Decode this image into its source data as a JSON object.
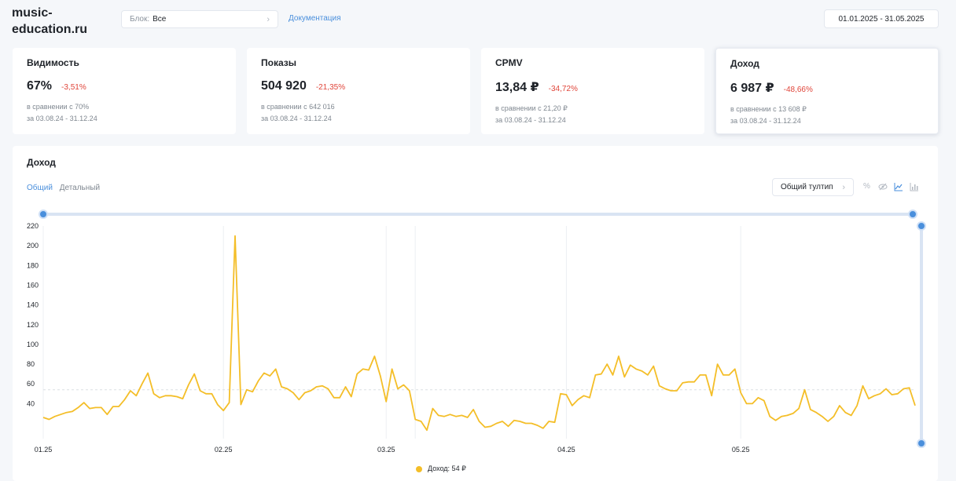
{
  "header": {
    "site_title_line1": "music-",
    "site_title_line2": "education.ru",
    "block_label": "Блок:",
    "block_value": "Все",
    "doc_link": "Документация",
    "date_range": "01.01.2025 - 31.05.2025"
  },
  "kpis": [
    {
      "title": "Видимость",
      "value": "67%",
      "delta": "-3,51%",
      "compare": "в сравнении с 70%",
      "period": "за 03.08.24 - 31.12.24"
    },
    {
      "title": "Показы",
      "value": "504 920",
      "delta": "-21,35%",
      "compare": "в сравнении с 642 016",
      "period": "за 03.08.24 - 31.12.24"
    },
    {
      "title": "CPMV",
      "value": "13,84 ₽",
      "delta": "-34,72%",
      "compare": "в сравнении с 21,20 ₽",
      "period": "за 03.08.24 - 31.12.24"
    },
    {
      "title": "Доход",
      "value": "6 987 ₽",
      "delta": "-48,66%",
      "compare": "в сравнении с 13 608 ₽",
      "period": "за 03.08.24 - 31.12.24"
    }
  ],
  "chart_section": {
    "title": "Доход",
    "tab_general": "Общий",
    "tab_detailed": "Детальный",
    "tooltip_button": "Общий тултип",
    "tools": [
      "percent-icon",
      "hide-icon",
      "line-chart-icon",
      "bar-chart-icon"
    ],
    "legend_label": "Доход: 54 ₽"
  },
  "colors": {
    "accent": "#4a8fdc",
    "series": "#f4be28",
    "negative": "#e0453a"
  },
  "chart_data": {
    "type": "line",
    "title": "Доход",
    "x_ticks": [
      "01.25",
      "02.25",
      "03.25",
      "04.25",
      "05.25"
    ],
    "y_ticks": [
      40,
      60,
      80,
      100,
      120,
      140,
      160,
      180,
      200,
      220
    ],
    "ylim": [
      20,
      220
    ],
    "average": 54,
    "grid": "vertical",
    "legend": "bottom-center",
    "series": [
      {
        "name": "Доход",
        "start_date": "01.01.2025",
        "step_days": 1,
        "values": [
          26,
          24,
          27,
          29,
          31,
          32,
          36,
          41,
          35,
          36,
          36,
          29,
          37,
          37,
          44,
          53,
          48,
          60,
          71,
          50,
          46,
          48,
          48,
          47,
          45,
          59,
          70,
          53,
          50,
          50,
          39,
          33,
          41,
          210,
          39,
          54,
          52,
          63,
          71,
          68,
          75,
          57,
          55,
          51,
          44,
          51,
          53,
          57,
          58,
          55,
          46,
          46,
          57,
          47,
          70,
          75,
          74,
          88,
          68,
          42,
          75,
          55,
          59,
          53,
          24,
          22,
          13,
          35,
          28,
          27,
          29,
          27,
          28,
          26,
          34,
          22,
          16,
          17,
          20,
          22,
          17,
          23,
          22,
          20,
          20,
          18,
          15,
          22,
          21,
          50,
          49,
          38,
          44,
          48,
          46,
          69,
          70,
          80,
          69,
          88,
          67,
          79,
          75,
          73,
          69,
          78,
          58,
          55,
          53,
          53,
          61,
          62,
          62,
          69,
          69,
          48,
          80,
          69,
          69,
          75,
          51,
          40,
          40,
          46,
          43,
          27,
          23,
          27,
          28,
          30,
          35,
          54,
          34,
          31,
          27,
          22,
          27,
          38,
          31,
          28,
          38,
          58,
          45,
          48,
          50,
          55,
          49,
          50,
          55,
          56,
          38
        ]
      }
    ]
  }
}
